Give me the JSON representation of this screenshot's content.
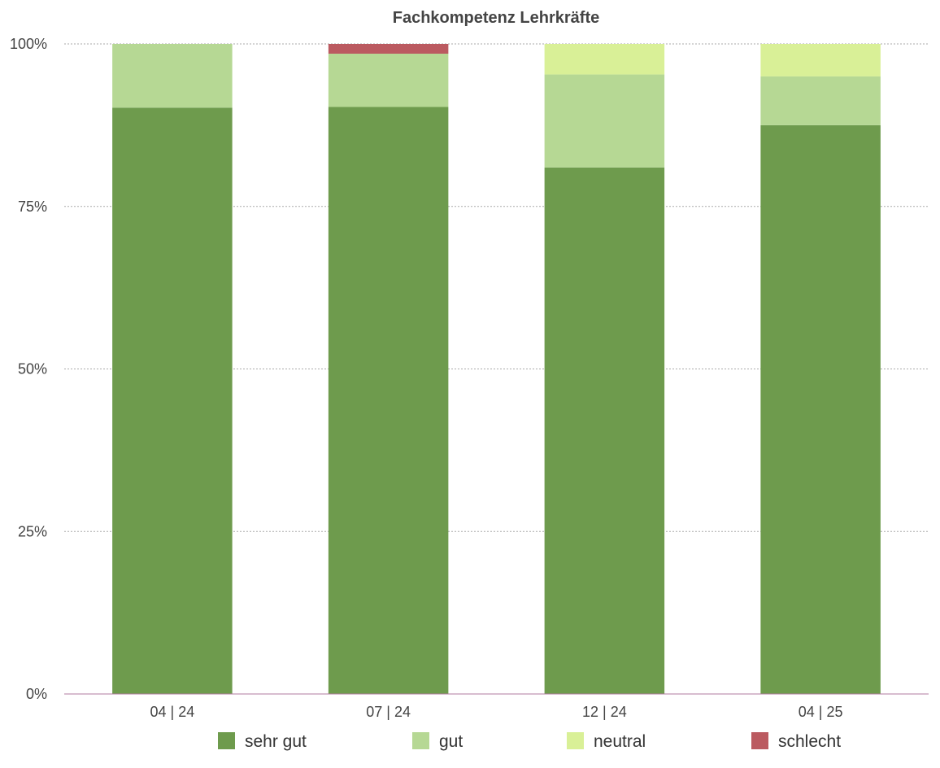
{
  "chart_data": {
    "type": "bar",
    "stacked": true,
    "title": "Fachkompetenz Lehrkräfte",
    "xlabel": "",
    "ylabel": "",
    "categories": [
      "04 | 24",
      "07 | 24",
      "12 | 24",
      "04 | 25"
    ],
    "ylim": [
      0,
      100
    ],
    "yticks": [
      0,
      25,
      50,
      75,
      100
    ],
    "ytick_labels": [
      "0%",
      "25%",
      "50%",
      "75%",
      "100%"
    ],
    "grid": true,
    "legend_position": "bottom",
    "series": [
      {
        "name": "sehr gut",
        "color": "#6e9b4d",
        "values": [
          90.2,
          90.3,
          81.0,
          87.5
        ]
      },
      {
        "name": "gut",
        "color": "#b6d894",
        "values": [
          9.8,
          8.2,
          14.3,
          7.5
        ]
      },
      {
        "name": "neutral",
        "color": "#d9f097",
        "values": [
          0,
          0,
          4.7,
          5.0
        ]
      },
      {
        "name": "schlecht",
        "color": "#bb5a60",
        "values": [
          0,
          1.5,
          0,
          0
        ]
      }
    ]
  }
}
